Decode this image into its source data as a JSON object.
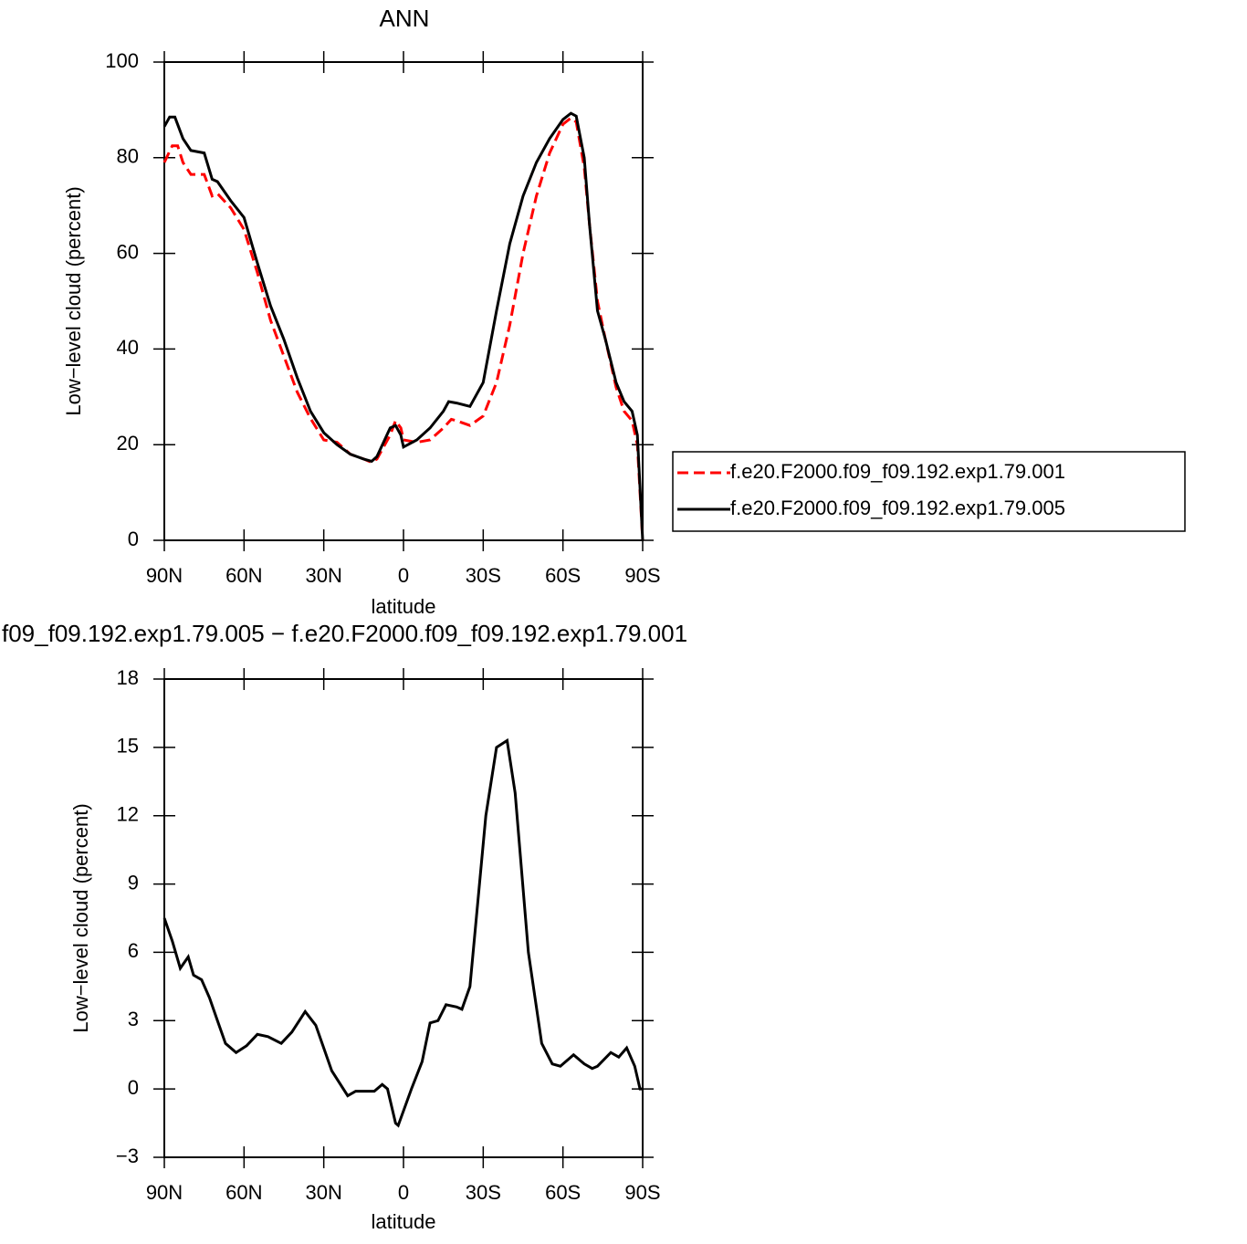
{
  "chart_data": [
    {
      "type": "line",
      "title": "ANN",
      "x_label": "latitude",
      "y_label": "Low−level cloud (percent)",
      "xlim": [
        90,
        -90
      ],
      "ylim": [
        0,
        100
      ],
      "xticks": [
        {
          "value": 90,
          "label": "90N"
        },
        {
          "value": 60,
          "label": "60N"
        },
        {
          "value": 30,
          "label": "30N"
        },
        0,
        {
          "value": -30,
          "label": "30S"
        },
        {
          "value": -60,
          "label": "60S"
        },
        {
          "value": -90,
          "label": "90S"
        }
      ],
      "yticks": [
        0,
        20,
        40,
        60,
        80,
        100
      ],
      "legend": "right",
      "series": [
        {
          "name": "f.e20.F2000.f09_f09.192.exp1.79.001",
          "color": "#ff0000",
          "dash": true,
          "x": [
            90,
            87,
            85,
            83,
            80,
            75,
            72,
            70,
            65,
            60,
            55,
            50,
            45,
            40,
            35,
            30,
            25,
            20,
            15,
            12,
            10,
            5,
            3,
            1,
            0,
            -5,
            -10,
            -15,
            -18,
            -20,
            -25,
            -30,
            -35,
            -40,
            -45,
            -50,
            -55,
            -60,
            -63,
            -65,
            -68,
            -70,
            -73,
            -76,
            -80,
            -83,
            -86,
            -88,
            -90
          ],
          "values": [
            79,
            82.5,
            82.5,
            79,
            76.5,
            76.5,
            72,
            72.5,
            69.5,
            65,
            56,
            46,
            38.5,
            31,
            25.5,
            21,
            20.5,
            18,
            17,
            16.3,
            17,
            22,
            25,
            23.5,
            21,
            20.5,
            21,
            23.5,
            25.3,
            25,
            24,
            26,
            33,
            45,
            60,
            72,
            81,
            87,
            88.3,
            87.5,
            78,
            66,
            50,
            42,
            32,
            27,
            25,
            20,
            0
          ]
        },
        {
          "name": "f.e20.F2000.f09_f09.192.exp1.79.005",
          "color": "#000000",
          "dash": false,
          "x": [
            90,
            88,
            86,
            83,
            80,
            75,
            72,
            70,
            65,
            60,
            55,
            50,
            45,
            40,
            35,
            30,
            25,
            20,
            15,
            12,
            10,
            5,
            3,
            1,
            0,
            -5,
            -10,
            -15,
            -17,
            -20,
            -25,
            -30,
            -35,
            -40,
            -45,
            -50,
            -55,
            -60,
            -63,
            -65,
            -68,
            -70,
            -73,
            -76,
            -80,
            -83,
            -86,
            -88,
            -90
          ],
          "values": [
            86.5,
            88.5,
            88.5,
            84,
            81.5,
            81,
            75.5,
            75,
            71,
            67.5,
            58,
            49,
            42,
            34,
            27,
            22.5,
            20,
            18,
            17,
            16.5,
            17.5,
            23.5,
            24,
            22,
            19.5,
            21,
            23.5,
            27,
            29,
            28.7,
            28,
            33,
            48,
            62,
            72,
            79,
            84,
            88,
            89.3,
            88.7,
            80,
            66,
            48,
            42,
            33,
            29,
            27,
            22,
            0
          ]
        }
      ]
    },
    {
      "type": "line",
      "title": "f09_f09.192.exp1.79.005 − f.e20.F2000.f09_f09.192.exp1.79.001",
      "x_label": "latitude",
      "y_label": "Low−level cloud (percent)",
      "xlim": [
        90,
        -90
      ],
      "ylim": [
        -3,
        18
      ],
      "xticks": [
        {
          "value": 90,
          "label": "90N"
        },
        {
          "value": 60,
          "label": "60N"
        },
        {
          "value": 30,
          "label": "30N"
        },
        0,
        {
          "value": -30,
          "label": "30S"
        },
        {
          "value": -60,
          "label": "60S"
        },
        {
          "value": -90,
          "label": "90S"
        }
      ],
      "yticks": [
        {
          "value": -3,
          "label": "−3"
        },
        0,
        3,
        6,
        9,
        12,
        15,
        18
      ],
      "series": [
        {
          "color": "#000000",
          "dash": false,
          "x": [
            90,
            87,
            84,
            81,
            79,
            76,
            73,
            70,
            67,
            63,
            59,
            55,
            51,
            46,
            42,
            37,
            33,
            27,
            21,
            18,
            11,
            8,
            6,
            3,
            2,
            -3,
            -7,
            -10,
            -13,
            -16,
            -20,
            -22,
            -25,
            -27,
            -31,
            -35,
            -39,
            -42,
            -47,
            -52,
            -56,
            -59,
            -64,
            -68,
            -71,
            -73,
            -78,
            -81,
            -84,
            -87,
            -89,
            -90
          ],
          "values": [
            7.5,
            6.5,
            5.3,
            5.8,
            5.0,
            4.8,
            4.0,
            3.0,
            2.0,
            1.6,
            1.9,
            2.4,
            2.3,
            2.0,
            2.5,
            3.4,
            2.8,
            0.8,
            -0.3,
            -0.1,
            -0.1,
            0.2,
            0,
            -1.5,
            -1.6,
            0,
            1.2,
            2.9,
            3.0,
            3.7,
            3.6,
            3.5,
            4.5,
            7,
            12,
            15,
            15.3,
            13,
            6,
            2,
            1.1,
            1.0,
            1.5,
            1.1,
            0.9,
            1.0,
            1.6,
            1.4,
            1.8,
            1.0,
            0,
            0
          ]
        }
      ]
    }
  ]
}
